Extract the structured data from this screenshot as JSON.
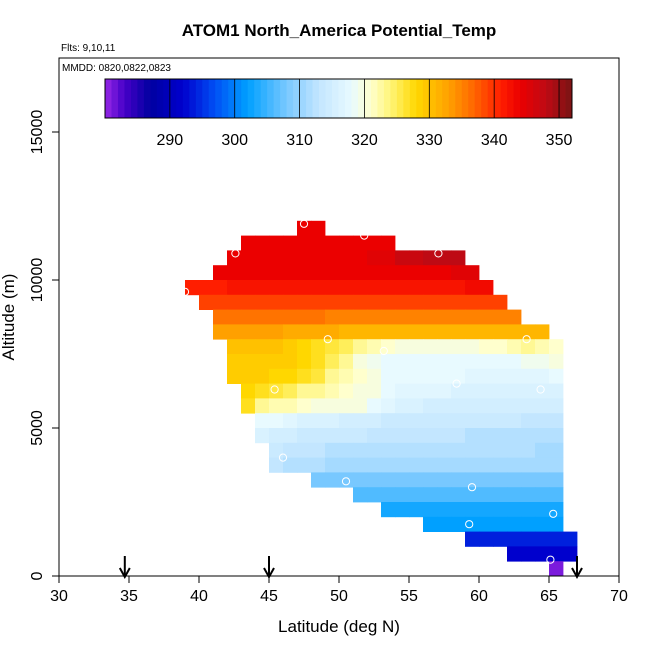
{
  "chart_data": {
    "type": "heatmap",
    "title": "ATOM1 North_America Potential_Temp",
    "flights_label": "Flts: 9,10,11",
    "dates_label": "MMDD: 0820,0822,0823",
    "xlabel": "Latitude (deg N)",
    "ylabel": "Altitude (m)",
    "xlim": [
      30,
      70
    ],
    "ylim": [
      0,
      17500
    ],
    "x_ticks": [
      30,
      35,
      40,
      45,
      50,
      55,
      60,
      65,
      70
    ],
    "y_ticks": [
      0,
      5000,
      10000,
      15000
    ],
    "grid": false,
    "colorbar": {
      "range": [
        280,
        352
      ],
      "ticks": [
        290,
        300,
        310,
        320,
        330,
        340,
        350
      ]
    },
    "cell_size": {
      "lat": 1,
      "alt": 500
    },
    "rows": [
      {
        "alt": 11750,
        "lat_start": 47,
        "values": [
          344,
          344
        ]
      },
      {
        "alt": 11250,
        "lat_start": 43,
        "values": [
          344,
          344,
          344,
          344,
          344,
          344,
          344,
          344,
          344,
          344,
          344
        ]
      },
      {
        "alt": 10750,
        "lat_start": 42,
        "values": [
          344,
          344,
          344,
          344,
          344,
          344,
          344,
          344,
          344,
          344,
          345,
          345,
          347,
          347,
          348,
          348,
          348
        ]
      },
      {
        "alt": 10250,
        "lat_start": 41,
        "values": [
          344,
          344,
          344,
          344,
          344,
          344,
          344,
          344,
          344,
          344,
          344,
          344,
          344,
          344,
          344,
          344,
          344,
          345,
          345
        ]
      },
      {
        "alt": 9750,
        "lat_start": 39,
        "values": [
          341,
          341,
          341,
          342,
          342,
          342,
          342,
          342,
          342,
          342,
          342,
          342,
          342,
          342,
          342,
          342,
          342,
          342,
          342,
          342,
          343,
          343
        ]
      },
      {
        "alt": 9250,
        "lat_start": 40,
        "values": [
          339,
          339,
          339,
          339,
          339,
          339,
          339,
          339,
          339,
          339,
          339,
          339,
          339,
          339,
          339,
          339,
          339,
          339,
          339,
          339,
          339,
          339
        ]
      },
      {
        "alt": 8750,
        "lat_start": 41,
        "values": [
          336,
          336,
          336,
          336,
          336,
          336,
          336,
          336,
          335,
          335,
          335,
          335,
          335,
          335,
          335,
          335,
          335,
          335,
          335,
          335,
          335,
          335
        ]
      },
      {
        "alt": 8250,
        "lat_start": 41,
        "values": [
          333,
          333,
          333,
          333,
          333,
          332,
          332,
          332,
          332,
          331,
          331,
          331,
          331,
          331,
          331,
          331,
          331,
          331,
          331,
          331,
          331,
          331,
          331,
          331
        ]
      },
      {
        "alt": 7750,
        "lat_start": 42,
        "values": [
          330,
          330,
          330,
          330,
          329,
          328,
          327,
          326,
          325,
          323,
          322,
          321,
          320,
          320,
          320,
          320,
          320,
          320,
          321,
          321,
          322,
          323,
          322,
          321
        ]
      },
      {
        "alt": 7250,
        "lat_start": 42,
        "values": [
          329,
          329,
          329,
          329,
          329,
          328,
          327,
          325,
          323,
          320,
          319,
          318,
          318,
          318,
          318,
          318,
          318,
          318,
          318,
          318,
          318,
          319,
          319,
          320
        ]
      },
      {
        "alt": 6750,
        "lat_start": 42,
        "values": [
          329,
          329,
          329,
          328,
          328,
          327,
          326,
          323,
          322,
          321,
          320,
          318,
          318,
          318,
          318,
          318,
          318,
          317,
          317,
          317,
          317,
          317,
          317,
          318
        ]
      },
      {
        "alt": 6250,
        "lat_start": 43,
        "values": [
          328,
          327,
          326,
          325,
          323,
          323,
          322,
          321,
          320,
          320,
          318,
          317,
          317,
          317,
          317,
          316,
          316,
          316,
          316,
          316,
          316,
          316,
          316
        ]
      },
      {
        "alt": 5750,
        "lat_start": 43,
        "values": [
          327,
          323,
          322,
          322,
          321,
          320,
          320,
          320,
          320,
          318,
          317,
          316,
          316,
          315,
          315,
          315,
          315,
          315,
          315,
          315,
          315,
          315,
          315
        ]
      },
      {
        "alt": 5250,
        "lat_start": 44,
        "values": [
          318,
          318,
          317,
          316,
          316,
          316,
          315,
          315,
          315,
          314,
          314,
          314,
          314,
          314,
          314,
          314,
          314,
          314,
          314,
          313,
          313,
          313
        ]
      },
      {
        "alt": 4750,
        "lat_start": 44,
        "values": [
          316,
          315,
          315,
          314,
          314,
          314,
          314,
          314,
          313,
          313,
          313,
          313,
          313,
          313,
          313,
          312,
          312,
          312,
          312,
          312,
          312,
          312
        ]
      },
      {
        "alt": 4250,
        "lat_start": 45,
        "values": [
          314,
          313,
          313,
          313,
          312,
          312,
          312,
          312,
          312,
          312,
          312,
          312,
          312,
          312,
          312,
          312,
          312,
          312,
          312,
          311,
          311
        ]
      },
      {
        "alt": 3750,
        "lat_start": 45,
        "values": [
          313,
          312,
          312,
          312,
          311,
          311,
          311,
          311,
          311,
          311,
          311,
          311,
          311,
          311,
          311,
          311,
          311,
          311,
          311,
          311,
          311
        ]
      },
      {
        "alt": 3250,
        "lat_start": 48,
        "values": [
          308,
          308,
          308,
          308,
          308,
          308,
          308,
          308,
          308,
          308,
          308,
          308,
          308,
          308,
          308,
          308,
          308,
          308
        ]
      },
      {
        "alt": 2750,
        "lat_start": 51,
        "values": [
          306,
          306,
          306,
          306,
          306,
          306,
          306,
          306,
          306,
          306,
          306,
          306,
          306,
          306,
          306
        ]
      },
      {
        "alt": 2250,
        "lat_start": 53,
        "values": [
          303,
          303,
          303,
          303,
          303,
          303,
          303,
          303,
          303,
          303,
          303,
          303,
          303
        ]
      },
      {
        "alt": 1750,
        "lat_start": 56,
        "values": [
          302,
          302,
          302,
          302,
          302,
          302,
          302,
          302,
          302,
          302
        ]
      },
      {
        "alt": 1250,
        "lat_start": 59,
        "values": [
          294,
          294,
          294,
          294,
          294,
          294,
          294,
          294
        ]
      },
      {
        "alt": 750,
        "lat_start": 62,
        "values": [
          292,
          292,
          292,
          292,
          292
        ]
      },
      {
        "alt": 250,
        "lat_start": 65,
        "values": [
          281
        ]
      }
    ],
    "markers": [
      {
        "lat": 47.5,
        "alt": 11900
      },
      {
        "lat": 51.8,
        "alt": 11500
      },
      {
        "lat": 42.6,
        "alt": 10900
      },
      {
        "lat": 57.1,
        "alt": 10900
      },
      {
        "lat": 39.0,
        "alt": 9600
      },
      {
        "lat": 49.2,
        "alt": 8000
      },
      {
        "lat": 63.4,
        "alt": 8000
      },
      {
        "lat": 53.2,
        "alt": 7600
      },
      {
        "lat": 58.4,
        "alt": 6500
      },
      {
        "lat": 45.4,
        "alt": 6300
      },
      {
        "lat": 64.4,
        "alt": 6300
      },
      {
        "lat": 46.0,
        "alt": 4000
      },
      {
        "lat": 50.5,
        "alt": 3200
      },
      {
        "lat": 59.5,
        "alt": 3000
      },
      {
        "lat": 65.3,
        "alt": 2100
      },
      {
        "lat": 59.3,
        "alt": 1750
      },
      {
        "lat": 65.1,
        "alt": 550
      }
    ],
    "arrows": [
      34.7,
      45.0,
      67.0
    ]
  }
}
